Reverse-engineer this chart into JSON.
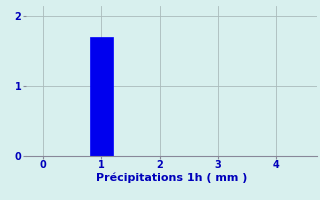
{
  "bar_x": [
    1
  ],
  "bar_height": [
    1.7
  ],
  "bar_width": 0.4,
  "bar_color": "#0000ee",
  "bar_edge_color": "#0000ff",
  "background_color": "#d8f0ee",
  "plot_bg_color": "#d8f0ee",
  "grid_color": "#aabbbb",
  "xlabel": "Précipitations 1h ( mm )",
  "xlabel_color": "#0000bb",
  "xlabel_fontsize": 8,
  "tick_color": "#0000bb",
  "tick_fontsize": 7,
  "xlim": [
    -0.3,
    4.7
  ],
  "ylim": [
    0,
    2.15
  ],
  "xticks": [
    0,
    1,
    2,
    3,
    4
  ],
  "yticks": [
    0,
    1,
    2
  ],
  "ytick_labels": [
    "0",
    "1",
    "2"
  ],
  "xtick_labels": [
    "0",
    "1",
    "2",
    "3",
    "4"
  ],
  "spine_color": "#888899"
}
